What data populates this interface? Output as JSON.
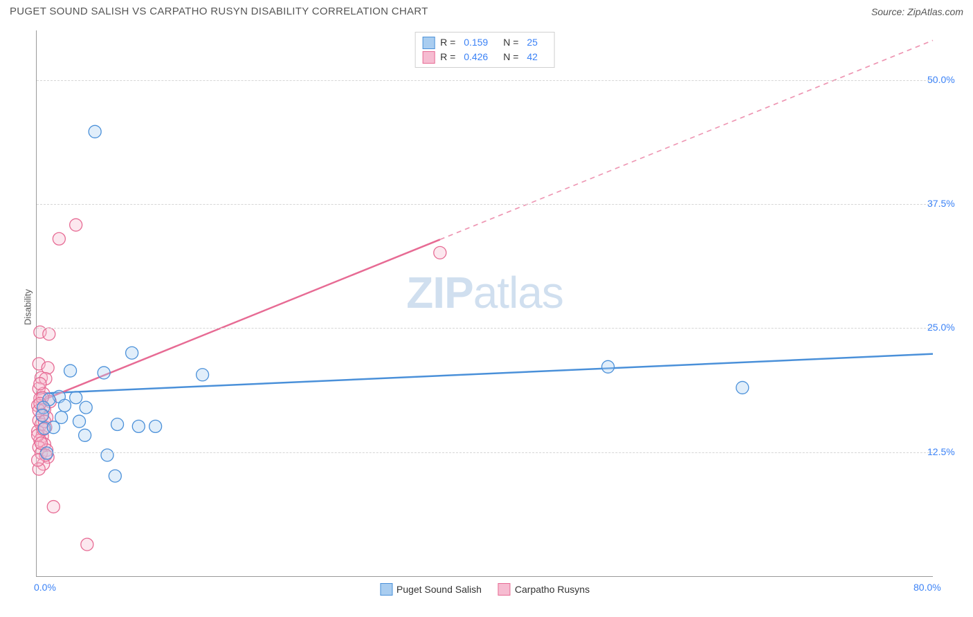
{
  "header": {
    "title": "PUGET SOUND SALISH VS CARPATHO RUSYN DISABILITY CORRELATION CHART",
    "source": "Source: ZipAtlas.com"
  },
  "chart": {
    "type": "scatter",
    "ylabel": "Disability",
    "watermark_part1": "ZIP",
    "watermark_part2": "atlas",
    "background_color": "#ffffff",
    "grid_color": "#d5d5d5",
    "axis_color": "#999999",
    "tick_label_color": "#3b82f6",
    "xlim": [
      0,
      80
    ],
    "ylim": [
      0,
      55
    ],
    "x_ticks": [
      {
        "value": 0,
        "label": "0.0%"
      },
      {
        "value": 80,
        "label": "80.0%"
      }
    ],
    "y_ticks": [
      {
        "value": 12.5,
        "label": "12.5%"
      },
      {
        "value": 25.0,
        "label": "25.0%"
      },
      {
        "value": 37.5,
        "label": "37.5%"
      },
      {
        "value": 50.0,
        "label": "50.0%"
      }
    ],
    "marker_radius": 9,
    "marker_stroke_width": 1.3,
    "marker_fill_opacity": 0.35,
    "trend_line_width": 2.5,
    "series": [
      {
        "name": "Puget Sound Salish",
        "color_stroke": "#4a90d9",
        "color_fill": "#a9cdf0",
        "stats_R": "0.159",
        "stats_N": "25",
        "trend": {
          "x1": 0,
          "y1": 18.4,
          "x2": 80,
          "y2": 22.4,
          "dashed_from_x": null
        },
        "points": [
          {
            "x": 5.2,
            "y": 44.8
          },
          {
            "x": 8.5,
            "y": 22.5
          },
          {
            "x": 3.0,
            "y": 20.7
          },
          {
            "x": 6.0,
            "y": 20.5
          },
          {
            "x": 14.8,
            "y": 20.3
          },
          {
            "x": 51.0,
            "y": 21.1
          },
          {
            "x": 63.0,
            "y": 19.0
          },
          {
            "x": 2.0,
            "y": 18.1
          },
          {
            "x": 3.5,
            "y": 18.0
          },
          {
            "x": 1.1,
            "y": 17.8
          },
          {
            "x": 0.6,
            "y": 17.0
          },
          {
            "x": 2.5,
            "y": 17.2
          },
          {
            "x": 4.4,
            "y": 17.0
          },
          {
            "x": 7.2,
            "y": 15.3
          },
          {
            "x": 9.1,
            "y": 15.1
          },
          {
            "x": 10.6,
            "y": 15.1
          },
          {
            "x": 0.7,
            "y": 14.9
          },
          {
            "x": 4.3,
            "y": 14.2
          },
          {
            "x": 6.3,
            "y": 12.2
          },
          {
            "x": 0.9,
            "y": 12.4
          },
          {
            "x": 7.0,
            "y": 10.1
          },
          {
            "x": 2.2,
            "y": 16.0
          },
          {
            "x": 1.5,
            "y": 15.0
          },
          {
            "x": 0.5,
            "y": 16.2
          },
          {
            "x": 3.8,
            "y": 15.6
          }
        ]
      },
      {
        "name": "Carpatho Rusyns",
        "color_stroke": "#e76b94",
        "color_fill": "#f6bcd1",
        "stats_R": "0.426",
        "stats_N": "42",
        "trend": {
          "x1": 0,
          "y1": 17.5,
          "x2": 80,
          "y2": 54.0,
          "dashed_from_x": 36
        },
        "points": [
          {
            "x": 3.5,
            "y": 35.4
          },
          {
            "x": 2.0,
            "y": 34.0
          },
          {
            "x": 36.0,
            "y": 32.6
          },
          {
            "x": 0.3,
            "y": 24.6
          },
          {
            "x": 1.1,
            "y": 24.4
          },
          {
            "x": 0.2,
            "y": 21.4
          },
          {
            "x": 1.0,
            "y": 21.0
          },
          {
            "x": 0.4,
            "y": 20.0
          },
          {
            "x": 0.8,
            "y": 19.9
          },
          {
            "x": 0.2,
            "y": 18.9
          },
          {
            "x": 0.6,
            "y": 18.4
          },
          {
            "x": 0.3,
            "y": 17.9
          },
          {
            "x": 1.2,
            "y": 17.6
          },
          {
            "x": 0.1,
            "y": 17.2
          },
          {
            "x": 0.7,
            "y": 16.8
          },
          {
            "x": 0.5,
            "y": 16.3
          },
          {
            "x": 0.9,
            "y": 16.0
          },
          {
            "x": 0.2,
            "y": 15.7
          },
          {
            "x": 0.4,
            "y": 15.3
          },
          {
            "x": 0.8,
            "y": 15.0
          },
          {
            "x": 0.1,
            "y": 14.6
          },
          {
            "x": 0.5,
            "y": 14.1
          },
          {
            "x": 0.3,
            "y": 13.7
          },
          {
            "x": 0.7,
            "y": 13.3
          },
          {
            "x": 0.2,
            "y": 13.0
          },
          {
            "x": 0.9,
            "y": 12.7
          },
          {
            "x": 0.4,
            "y": 12.4
          },
          {
            "x": 1.0,
            "y": 12.0
          },
          {
            "x": 0.6,
            "y": 11.3
          },
          {
            "x": 0.2,
            "y": 10.8
          },
          {
            "x": 1.5,
            "y": 7.0
          },
          {
            "x": 4.5,
            "y": 3.2
          },
          {
            "x": 0.3,
            "y": 19.4
          },
          {
            "x": 0.5,
            "y": 18.0
          },
          {
            "x": 0.2,
            "y": 16.7
          },
          {
            "x": 0.7,
            "y": 15.6
          },
          {
            "x": 0.1,
            "y": 14.2
          },
          {
            "x": 0.4,
            "y": 13.4
          },
          {
            "x": 0.8,
            "y": 12.2
          },
          {
            "x": 0.1,
            "y": 11.7
          },
          {
            "x": 0.3,
            "y": 17.4
          },
          {
            "x": 0.6,
            "y": 14.8
          }
        ]
      }
    ]
  },
  "legend": {
    "item1": "Puget Sound Salish",
    "item2": "Carpatho Rusyns"
  }
}
